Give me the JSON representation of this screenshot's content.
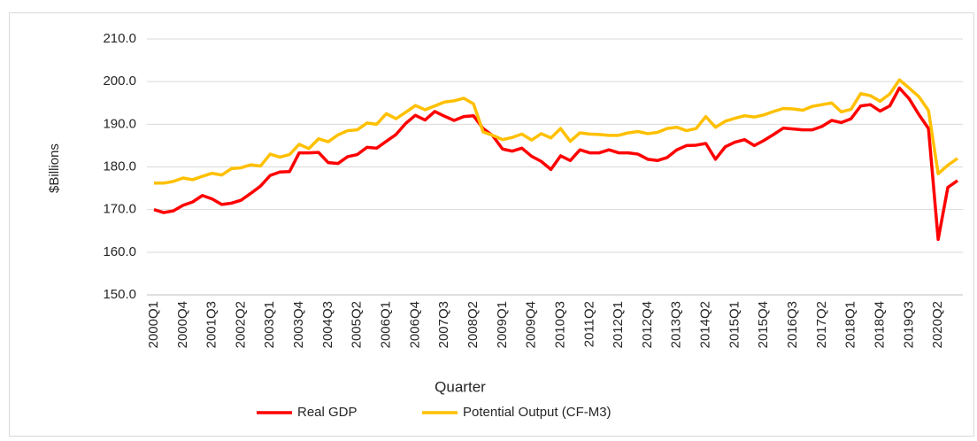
{
  "chart_data": {
    "type": "line",
    "y_label": "$Billions",
    "x_label": "Quarter",
    "categories": [
      "2000Q1",
      null,
      null,
      "2000Q4",
      null,
      null,
      "2001Q3",
      null,
      null,
      "2002Q2",
      null,
      null,
      "2003Q1",
      null,
      null,
      "2003Q4",
      null,
      null,
      "2004Q3",
      null,
      null,
      "2005Q2",
      null,
      null,
      "2006Q1",
      null,
      null,
      "2006Q4",
      null,
      null,
      "2007Q3",
      null,
      null,
      "2008Q2",
      null,
      null,
      "2009Q1",
      null,
      null,
      "2009Q4",
      null,
      null,
      "2010Q3",
      null,
      null,
      "2011Q2",
      null,
      null,
      "2012Q1",
      null,
      null,
      "2012Q4",
      null,
      null,
      "2013Q3",
      null,
      null,
      "2014Q2",
      null,
      null,
      "2015Q1",
      null,
      null,
      "2015Q4",
      null,
      null,
      "2016Q3",
      null,
      null,
      "2017Q2",
      null,
      null,
      "2018Q1",
      null,
      null,
      "2018Q4",
      null,
      null,
      "2019Q3",
      null,
      null,
      "2020Q2",
      null,
      null
    ],
    "series": [
      {
        "name": "Real GDP",
        "color": "#ff0000",
        "values": [
          170.0,
          169.3,
          169.7,
          171.0,
          171.8,
          173.3,
          172.5,
          171.2,
          171.5,
          172.2,
          173.8,
          175.5,
          178.0,
          178.8,
          178.9,
          183.3,
          183.3,
          183.4,
          181.0,
          180.8,
          182.4,
          182.9,
          184.6,
          184.4,
          186.0,
          187.6,
          190.2,
          192.1,
          191.0,
          193.0,
          191.9,
          190.9,
          191.8,
          192.0,
          189.0,
          187.3,
          184.2,
          183.7,
          184.4,
          182.5,
          181.3,
          179.4,
          182.6,
          181.5,
          184.0,
          183.3,
          183.3,
          184.0,
          183.3,
          183.3,
          183.0,
          181.8,
          181.5,
          182.2,
          184.0,
          185.0,
          185.1,
          185.5,
          181.8,
          184.7,
          185.8,
          186.4,
          185.0,
          186.2,
          187.6,
          189.1,
          188.9,
          188.7,
          188.7,
          189.5,
          190.9,
          190.4,
          191.3,
          194.3,
          194.6,
          193.1,
          194.3,
          198.5,
          196.0,
          192.3,
          189.0,
          163.0,
          175.2,
          176.8
        ]
      },
      {
        "name": "Potential Output (CF-M3)",
        "color": "#ffc000",
        "values": [
          176.2,
          176.2,
          176.6,
          177.4,
          177.0,
          177.8,
          178.5,
          178.1,
          179.6,
          179.8,
          180.5,
          180.2,
          183.0,
          182.3,
          182.9,
          185.3,
          184.3,
          186.6,
          185.9,
          187.5,
          188.5,
          188.7,
          190.3,
          190.0,
          192.5,
          191.3,
          192.8,
          194.4,
          193.4,
          194.3,
          195.2,
          195.5,
          196.1,
          194.8,
          188.2,
          187.4,
          186.4,
          186.9,
          187.7,
          186.3,
          187.8,
          186.8,
          189.0,
          186.0,
          188.0,
          187.7,
          187.6,
          187.4,
          187.4,
          188.0,
          188.3,
          187.8,
          188.1,
          189.0,
          189.3,
          188.5,
          189.0,
          191.8,
          189.3,
          190.7,
          191.4,
          192.0,
          191.7,
          192.2,
          193.0,
          193.7,
          193.6,
          193.3,
          194.2,
          194.6,
          195.0,
          192.9,
          193.5,
          197.2,
          196.7,
          195.4,
          197.1,
          200.4,
          198.5,
          196.5,
          193.2,
          178.4,
          180.4,
          182.0
        ]
      }
    ],
    "ylim": [
      150,
      210
    ],
    "yticks": [
      {
        "value": 150,
        "label": "150.0"
      },
      {
        "value": 160,
        "label": "160.0"
      },
      {
        "value": 170,
        "label": "170.0"
      },
      {
        "value": 180,
        "label": "180.0"
      },
      {
        "value": 190,
        "label": "190.0"
      },
      {
        "value": 200,
        "label": "200.0"
      },
      {
        "value": 210,
        "label": "210.0"
      }
    ],
    "grid": true,
    "legend": "bottom"
  }
}
